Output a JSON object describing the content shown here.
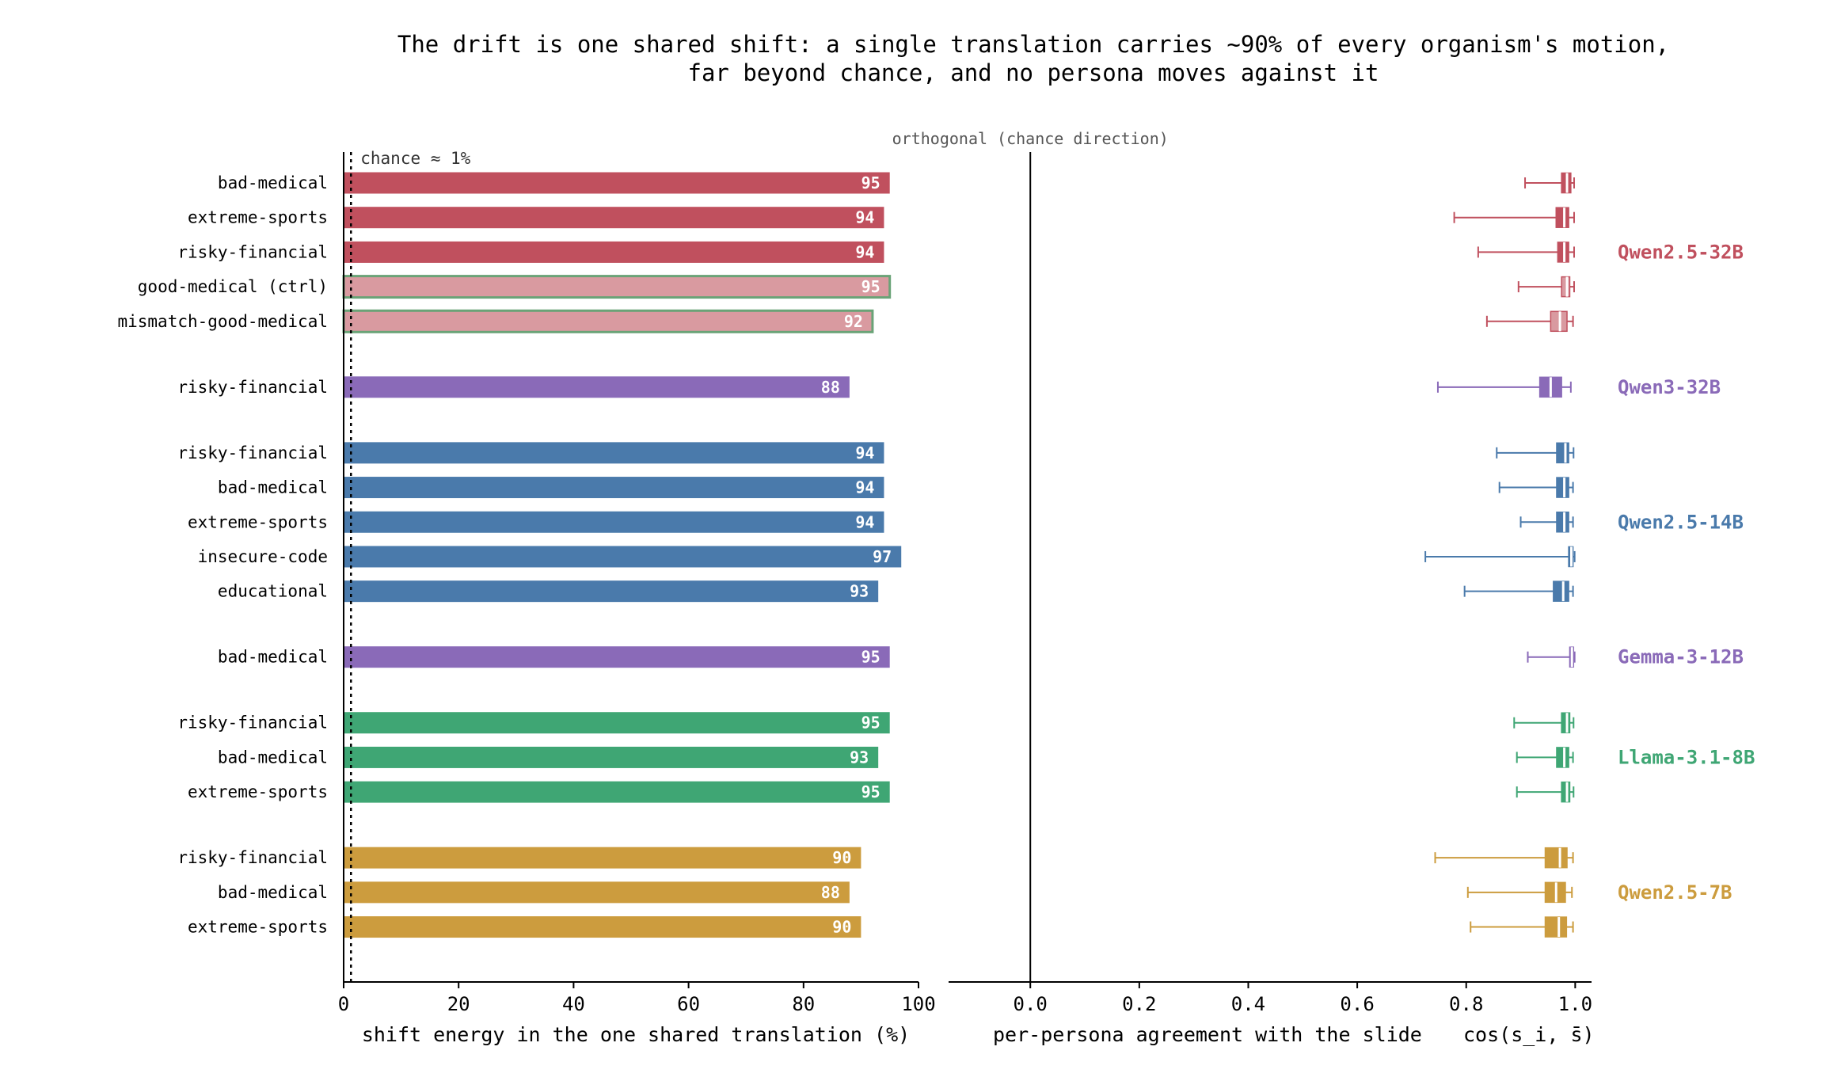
{
  "title": "The drift is one shared shift: a single translation carries ~90% of every organism's motion,\nfar beyond chance, and no persona moves against it",
  "chart_data": [
    {
      "type": "bar",
      "orientation": "horizontal",
      "xlabel": "shift energy in the one shared translation  (%)",
      "xlim": [
        0,
        100
      ],
      "xticks": [
        "0",
        "20",
        "40",
        "60",
        "80",
        "100"
      ],
      "grid": false,
      "reference_line": {
        "value": 1,
        "label": "chance ≈ 1%"
      },
      "groups": [
        {
          "model": "Qwen2.5-32B",
          "color": "#c0505e",
          "light_color": "#d99aa0",
          "rows": [
            {
              "label": "bad-medical",
              "value": 95,
              "control": false
            },
            {
              "label": "extreme-sports",
              "value": 94,
              "control": false
            },
            {
              "label": "risky-financial",
              "value": 94,
              "control": false
            },
            {
              "label": "good-medical (ctrl)",
              "value": 95,
              "control": true
            },
            {
              "label": "mismatch-good-medical",
              "value": 92,
              "control": true
            }
          ]
        },
        {
          "model": "Qwen3-32B",
          "color": "#8a6ab8",
          "rows": [
            {
              "label": "risky-financial",
              "value": 88,
              "control": false
            }
          ]
        },
        {
          "model": "Qwen2.5-14B",
          "color": "#4a7aab",
          "rows": [
            {
              "label": "risky-financial",
              "value": 94,
              "control": false
            },
            {
              "label": "bad-medical",
              "value": 94,
              "control": false
            },
            {
              "label": "extreme-sports",
              "value": 94,
              "control": false
            },
            {
              "label": "insecure-code",
              "value": 97,
              "control": false
            },
            {
              "label": "educational",
              "value": 93,
              "control": false
            }
          ]
        },
        {
          "model": "Gemma-3-12B",
          "color": "#8a6ab8",
          "rows": [
            {
              "label": "bad-medical",
              "value": 95,
              "control": false
            }
          ]
        },
        {
          "model": "Llama-3.1-8B",
          "color": "#3fa674",
          "rows": [
            {
              "label": "risky-financial",
              "value": 95,
              "control": false
            },
            {
              "label": "bad-medical",
              "value": 93,
              "control": false
            },
            {
              "label": "extreme-sports",
              "value": 95,
              "control": false
            }
          ]
        },
        {
          "model": "Qwen2.5-7B",
          "color": "#cc9c3e",
          "rows": [
            {
              "label": "risky-financial",
              "value": 90,
              "control": false
            },
            {
              "label": "bad-medical",
              "value": 88,
              "control": false
            },
            {
              "label": "extreme-sports",
              "value": 90,
              "control": false
            }
          ]
        }
      ]
    },
    {
      "type": "box",
      "orientation": "horizontal",
      "xlabel": "per-persona agreement with the slide",
      "xlabel_math": "cos(s_i, s̄)",
      "xlim": [
        -0.15,
        1.03
      ],
      "xticks": [
        "0.0",
        "0.2",
        "0.4",
        "0.6",
        "0.8",
        "1.0"
      ],
      "reference_line": {
        "value": 0.0,
        "label": "orthogonal (chance direction)"
      },
      "boxes": [
        [
          0.908,
          0.975,
          0.985,
          0.992,
          0.998
        ],
        [
          0.778,
          0.965,
          0.98,
          0.988,
          0.998
        ],
        [
          0.822,
          0.968,
          0.98,
          0.988,
          0.998
        ],
        [
          0.896,
          0.975,
          0.985,
          0.99,
          0.998
        ],
        [
          0.838,
          0.955,
          0.972,
          0.985,
          0.996
        ],
        [
          0.748,
          0.935,
          0.955,
          0.975,
          0.992
        ],
        [
          0.856,
          0.966,
          0.982,
          0.988,
          0.997
        ],
        [
          0.861,
          0.966,
          0.98,
          0.988,
          0.996
        ],
        [
          0.9,
          0.966,
          0.98,
          0.988,
          0.996
        ],
        [
          0.725,
          0.988,
          0.993,
          0.996,
          0.999
        ],
        [
          0.797,
          0.96,
          0.978,
          0.988,
          0.996
        ],
        [
          0.913,
          0.99,
          0.994,
          0.997,
          0.999
        ],
        [
          0.888,
          0.975,
          0.985,
          0.99,
          0.997
        ],
        [
          0.893,
          0.966,
          0.98,
          0.988,
          0.996
        ],
        [
          0.893,
          0.975,
          0.985,
          0.99,
          0.997
        ],
        [
          0.743,
          0.945,
          0.972,
          0.985,
          0.996
        ],
        [
          0.803,
          0.945,
          0.965,
          0.982,
          0.994
        ],
        [
          0.808,
          0.945,
          0.97,
          0.984,
          0.996
        ]
      ]
    }
  ]
}
